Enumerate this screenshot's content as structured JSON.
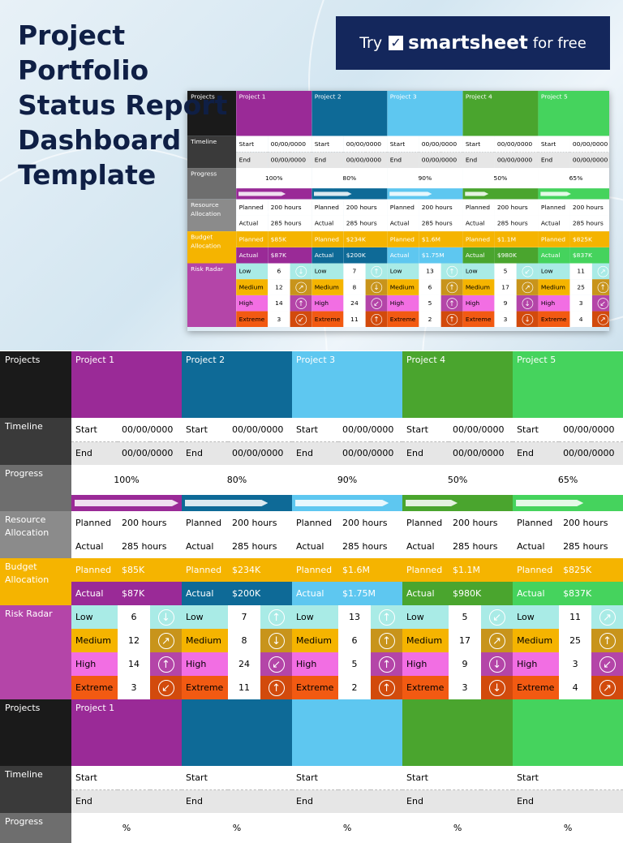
{
  "title_lines": [
    "Project",
    "Portfolio",
    "Status Report",
    "Dashboard",
    "Template"
  ],
  "ad": {
    "try": "Try",
    "brand": "smartsheet",
    "free": "for free"
  },
  "labels": {
    "projects": "Projects",
    "timeline": "Timeline",
    "progress": "Progress",
    "resource": "Resource Allocation",
    "budget": "Budget Allocation",
    "risk": "Risk Radar",
    "start": "Start",
    "end": "End",
    "planned": "Planned",
    "actual": "Actual",
    "low": "Low",
    "medium": "Medium",
    "high": "High",
    "extreme": "Extreme"
  },
  "projects": [
    {
      "name": "Project 1",
      "color": "#9a2a97",
      "start": "00/00/0000",
      "end": "00/00/0000",
      "progress": "100%",
      "progress_fraction": 1.0,
      "planned_hours": "200 hours",
      "actual_hours": "285 hours",
      "budget_planned": "$85K",
      "budget_actual": "$87K",
      "actual_color": "#9a2a97",
      "risks": {
        "low": {
          "count": "6",
          "icon": "arrow-down-icon"
        },
        "medium": {
          "count": "12",
          "icon": "arrow-up-right-icon"
        },
        "high": {
          "count": "14",
          "icon": "arrow-up-icon"
        },
        "extreme": {
          "count": "3",
          "icon": "arrow-down-left-icon"
        }
      }
    },
    {
      "name": "Project 2",
      "color": "#0e6a97",
      "start": "00/00/0000",
      "end": "00/00/0000",
      "progress": "80%",
      "progress_fraction": 0.8,
      "planned_hours": "200 hours",
      "actual_hours": "285 hours",
      "budget_planned": "$234K",
      "budget_actual": "$200K",
      "actual_color": "#0e6a97",
      "risks": {
        "low": {
          "count": "7",
          "icon": "arrow-up-icon"
        },
        "medium": {
          "count": "8",
          "icon": "arrow-down-icon"
        },
        "high": {
          "count": "24",
          "icon": "arrow-down-left-icon"
        },
        "extreme": {
          "count": "11",
          "icon": "arrow-up-icon"
        }
      }
    },
    {
      "name": "Project 3",
      "color": "#5ec7f0",
      "start": "00/00/0000",
      "end": "00/00/0000",
      "progress": "90%",
      "progress_fraction": 0.9,
      "planned_hours": "200 hours",
      "actual_hours": "285 hours",
      "budget_planned": "$1.6M",
      "budget_actual": "$1.75M",
      "actual_color": "#5ec7f0",
      "risks": {
        "low": {
          "count": "13",
          "icon": "arrow-up-icon"
        },
        "medium": {
          "count": "6",
          "icon": "arrow-up-icon"
        },
        "high": {
          "count": "5",
          "icon": "arrow-up-icon"
        },
        "extreme": {
          "count": "2",
          "icon": "arrow-up-icon"
        }
      }
    },
    {
      "name": "Project 4",
      "color": "#4aa52e",
      "start": "00/00/0000",
      "end": "00/00/0000",
      "progress": "50%",
      "progress_fraction": 0.5,
      "planned_hours": "200 hours",
      "actual_hours": "285 hours",
      "budget_planned": "$1.1M",
      "budget_actual": "$980K",
      "actual_color": "#4aa52e",
      "risks": {
        "low": {
          "count": "5",
          "icon": "arrow-down-left-icon"
        },
        "medium": {
          "count": "17",
          "icon": "arrow-up-right-icon"
        },
        "high": {
          "count": "9",
          "icon": "arrow-down-icon"
        },
        "extreme": {
          "count": "3",
          "icon": "arrow-down-icon"
        }
      }
    },
    {
      "name": "Project 5",
      "color": "#45d35d",
      "start": "00/00/0000",
      "end": "00/00/0000",
      "progress": "65%",
      "progress_fraction": 0.65,
      "planned_hours": "200 hours",
      "actual_hours": "285 hours",
      "budget_planned": "$825K",
      "budget_actual": "$837K",
      "actual_color": "#45d35d",
      "risks": {
        "low": {
          "count": "11",
          "icon": "arrow-up-right-icon"
        },
        "medium": {
          "count": "25",
          "icon": "arrow-up-icon"
        },
        "high": {
          "count": "3",
          "icon": "arrow-down-left-icon"
        },
        "extreme": {
          "count": "4",
          "icon": "arrow-up-right-icon"
        }
      }
    }
  ],
  "blank_template": {
    "first_project_name": "Project 1",
    "progress_placeholder": "%"
  }
}
